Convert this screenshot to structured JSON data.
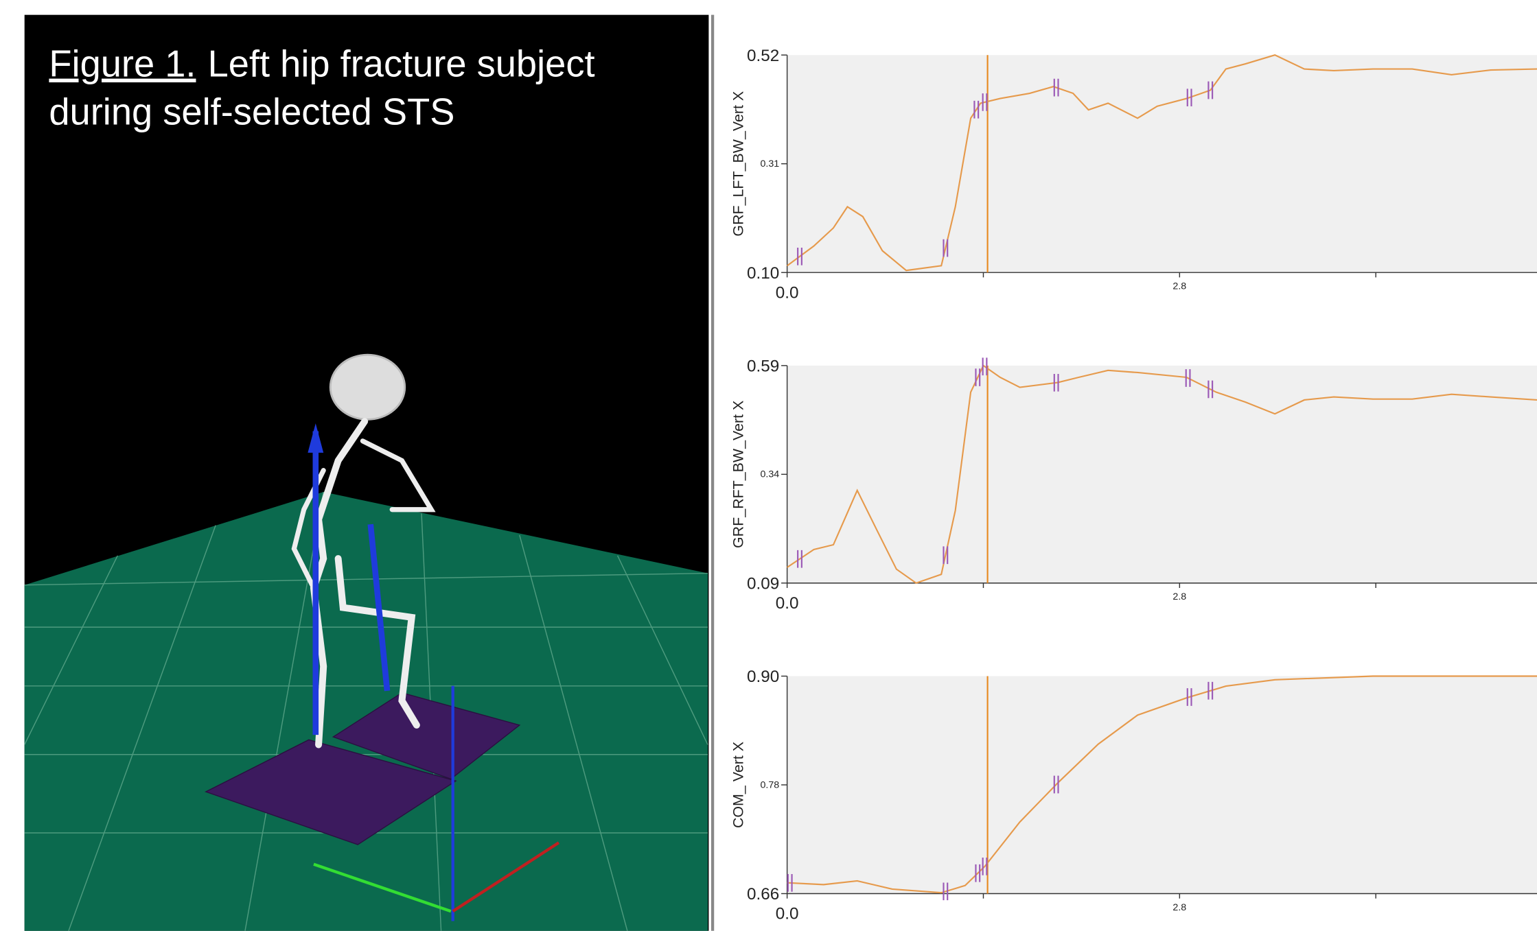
{
  "header": {
    "figure_label": "Figure 1.",
    "caption_line1": "Left hip fracture subject",
    "caption_line2": "during self-selected STS"
  },
  "chart_data": [
    {
      "type": "line",
      "y_label": "GRF_LFT_BW_Vert X",
      "x": [
        0,
        0.19,
        0.33,
        0.43,
        0.54,
        0.68,
        0.85,
        1.1,
        1.2,
        1.31,
        1.38,
        1.52,
        1.73,
        1.9,
        2.04,
        2.15,
        2.29,
        2.5,
        2.64,
        2.85,
        3.02,
        3.13,
        3.27,
        3.48,
        3.69,
        3.9,
        4.18,
        4.46,
        4.74,
        5.02,
        5.35
      ],
      "series": [
        {
          "color": "#e69a4c",
          "values": [
            0.113,
            0.151,
            0.186,
            0.227,
            0.208,
            0.142,
            0.104,
            0.113,
            0.227,
            0.398,
            0.427,
            0.436,
            0.446,
            0.459,
            0.446,
            0.414,
            0.427,
            0.398,
            0.421,
            0.436,
            0.452,
            0.493,
            0.503,
            0.52,
            0.493,
            0.49,
            0.493,
            0.493,
            0.482,
            0.491,
            0.493
          ]
        }
      ],
      "xlim": [
        0,
        5.35
      ],
      "ylim": [
        0.1,
        0.52
      ],
      "xticks": [
        {
          "value": 0,
          "label": "0.0"
        },
        2.8
      ],
      "xminorticks": [
        1.4,
        4.2
      ],
      "yticks": [
        {
          "value": 0.1,
          "label": "0.10"
        },
        0.31,
        0.52
      ],
      "cursor": 1.43,
      "events": [
        0.09,
        1.13,
        1.35,
        1.41,
        1.92,
        2.87,
        3.02
      ],
      "event_color": "#9b59b6",
      "cursor_color": "#e8891f"
    },
    {
      "type": "line",
      "y_label": "GRF_RFT_BW_Vert X",
      "x": [
        0,
        0.19,
        0.33,
        0.5,
        0.64,
        0.78,
        0.92,
        1.1,
        1.2,
        1.31,
        1.4,
        1.52,
        1.66,
        1.93,
        2.08,
        2.29,
        2.5,
        2.85,
        3.06,
        3.27,
        3.48,
        3.69,
        3.9,
        4.18,
        4.46,
        4.74,
        5.02,
        5.35
      ],
      "series": [
        {
          "color": "#e69a4c",
          "values": [
            0.126,
            0.167,
            0.178,
            0.303,
            0.212,
            0.122,
            0.09,
            0.11,
            0.257,
            0.529,
            0.59,
            0.563,
            0.54,
            0.551,
            0.563,
            0.579,
            0.574,
            0.563,
            0.529,
            0.506,
            0.479,
            0.511,
            0.518,
            0.513,
            0.513,
            0.524,
            0.518,
            0.511
          ]
        }
      ],
      "xlim": [
        0,
        5.35
      ],
      "ylim": [
        0.09,
        0.59
      ],
      "xticks": [
        {
          "value": 0,
          "label": "0.0"
        },
        2.8
      ],
      "xminorticks": [
        1.4,
        4.2
      ],
      "yticks": [
        0.09,
        0.34,
        0.59
      ],
      "cursor": 1.43,
      "events": [
        0.09,
        1.13,
        1.36,
        1.41,
        1.92,
        2.86,
        3.02
      ],
      "event_color": "#9b59b6",
      "cursor_color": "#e8891f"
    },
    {
      "type": "line",
      "y_label": "COM_ Vert X",
      "x": [
        0,
        0.26,
        0.5,
        0.75,
        1.1,
        1.27,
        1.41,
        1.66,
        1.93,
        2.22,
        2.5,
        2.85,
        3.13,
        3.48,
        4.18,
        5.35
      ],
      "series": [
        {
          "color": "#e69a4c",
          "values": [
            0.672,
            0.67,
            0.674,
            0.665,
            0.661,
            0.669,
            0.69,
            0.739,
            0.782,
            0.825,
            0.857,
            0.876,
            0.889,
            0.896,
            0.9,
            0.9
          ]
        }
      ],
      "xlim": [
        0,
        5.35
      ],
      "ylim": [
        0.66,
        0.9
      ],
      "xticks": [
        {
          "value": 0,
          "label": "0.0"
        },
        2.8
      ],
      "xminorticks": [
        1.4,
        4.2
      ],
      "yticks": [
        0.66,
        0.78,
        {
          "value": 0.9,
          "label": "0.90"
        }
      ],
      "cursor": 1.43,
      "events": [
        0.02,
        1.13,
        1.36,
        1.41,
        1.92,
        2.87,
        3.02
      ],
      "event_color": "#9b59b6",
      "cursor_color": "#e8891f"
    }
  ]
}
